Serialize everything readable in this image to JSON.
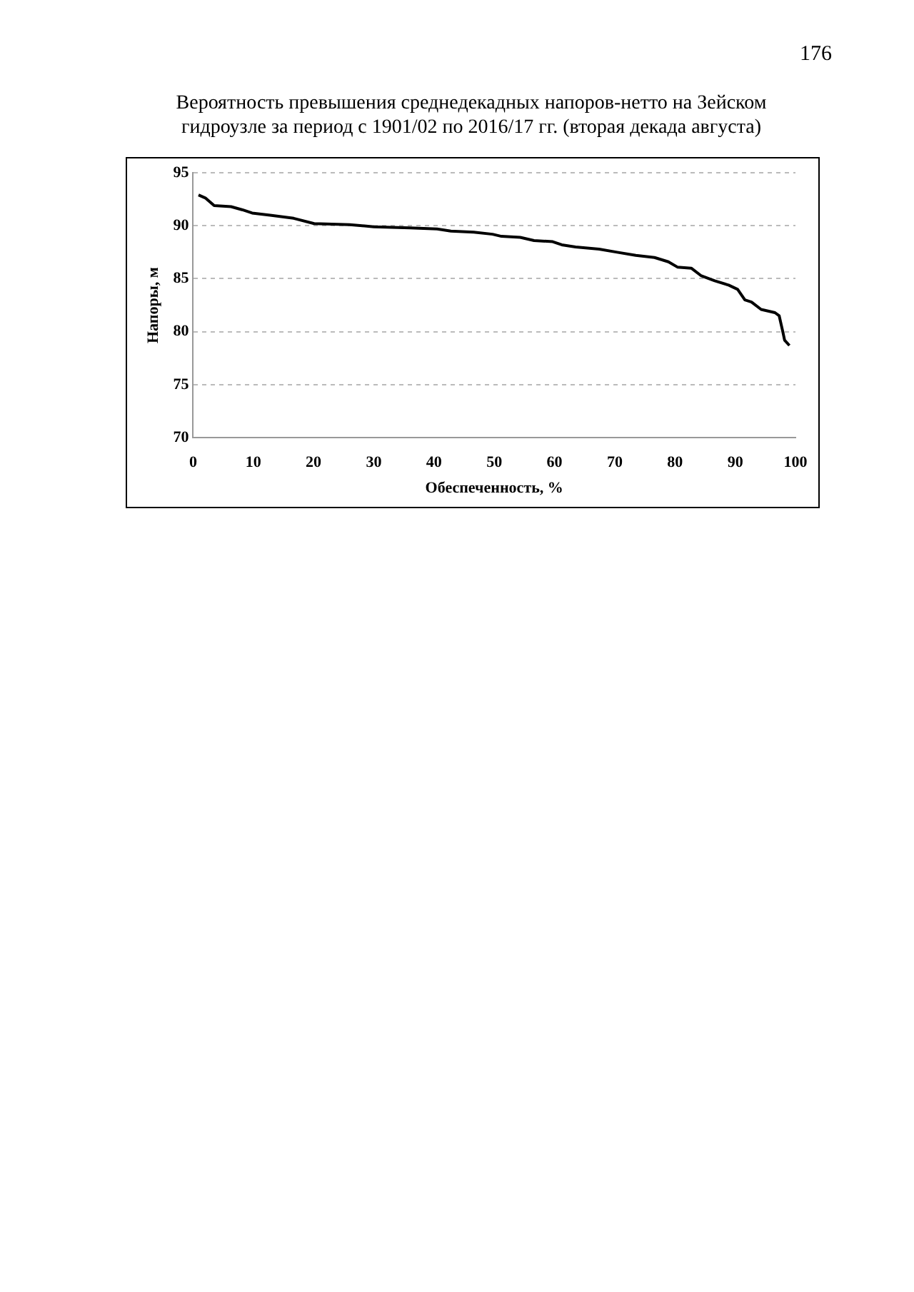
{
  "chart_data": {
    "type": "line",
    "title": "Вероятность превышения среднедекадных напоров-нетто на Зейском гидроузле за период с 1901/02 по 2016/17 гг. (вторая декада августа)",
    "xlabel": "Обеспеченность, %",
    "ylabel": "Напоры, м",
    "annotations": [
      "176"
    ],
    "x": [
      0.9,
      2.1,
      3.5,
      6.3,
      8.2,
      9.8,
      12.8,
      16.7,
      20.1,
      26,
      30,
      36,
      40.5,
      42.8,
      46.6,
      49.7,
      51.2,
      54.3,
      56.6,
      59.7,
      61.2,
      63.5,
      67.4,
      70.4,
      73.5,
      76.6,
      78.9,
      80.4,
      82.7,
      84.3,
      86.6,
      88.9,
      90.4,
      91.6,
      92.7,
      94.3,
      96.6,
      97.3,
      97.9,
      98.2,
      99.0
    ],
    "series": [
      {
        "color": "#000000",
        "values": [
          92.9,
          92.6,
          91.9,
          91.8,
          91.5,
          91.2,
          91.0,
          90.7,
          90.2,
          90.1,
          89.9,
          89.8,
          89.7,
          89.5,
          89.4,
          89.2,
          89.0,
          88.9,
          88.6,
          88.5,
          88.2,
          88.0,
          87.8,
          87.5,
          87.2,
          87.0,
          86.6,
          86.1,
          86.0,
          85.3,
          84.8,
          84.4,
          84.0,
          83.0,
          82.8,
          82.1,
          81.8,
          81.5,
          80.0,
          79.2,
          78.7
        ]
      }
    ],
    "xlim": [
      0,
      100
    ],
    "xticks": [
      0,
      10,
      20,
      30,
      40,
      50,
      60,
      70,
      80,
      90,
      100
    ],
    "ylim": [
      70,
      95
    ],
    "yticks": [
      70,
      75,
      80,
      85,
      90,
      95
    ],
    "grid": "y",
    "legend": false,
    "marker": "none",
    "line_style": "solid"
  }
}
